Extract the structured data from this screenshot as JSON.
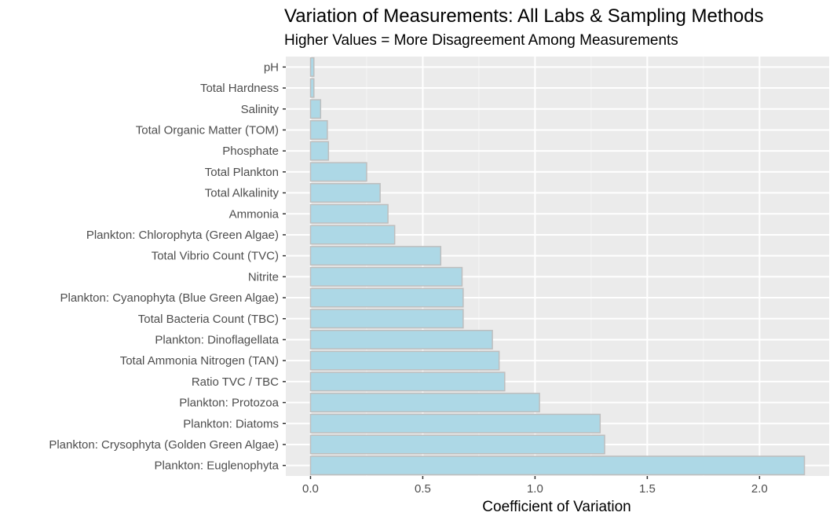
{
  "chart_data": {
    "type": "bar",
    "orientation": "horizontal",
    "title": "Variation of Measurements: All Labs & Sampling Methods",
    "subtitle": "Higher Values = More Disagreement Among Measurements",
    "xlabel": "Coefficient of Variation",
    "ylabel": "",
    "categories": [
      "pH",
      "Total Hardness",
      "Salinity",
      "Total Organic Matter (TOM)",
      "Phosphate",
      "Total Plankton",
      "Total Alkalinity",
      "Ammonia",
      "Plankton: Chlorophyta (Green Algae)",
      "Total Vibrio Count (TVC)",
      "Nitrite",
      "Plankton: Cyanophyta (Blue Green Algae)",
      "Total Bacteria Count (TBC)",
      "Plankton: Dinoflagellata",
      "Total Ammonia Nitrogen (TAN)",
      "Ratio TVC / TBC",
      "Plankton: Protozoa",
      "Plankton: Diatoms",
      "Plankton: Crysophyta (Golden Green Algae)",
      "Plankton: Euglenophyta"
    ],
    "values": [
      0.015,
      0.015,
      0.045,
      0.075,
      0.08,
      0.25,
      0.31,
      0.345,
      0.375,
      0.58,
      0.675,
      0.68,
      0.68,
      0.81,
      0.84,
      0.865,
      1.02,
      1.29,
      1.31,
      2.2
    ],
    "xlim": [
      -0.11,
      2.31
    ],
    "xticks": [
      0.0,
      0.5,
      1.0,
      1.5,
      2.0
    ],
    "xtick_labels": [
      "0.0",
      "0.5",
      "1.0",
      "1.5",
      "2.0"
    ],
    "grid": true,
    "legend": "none",
    "colors": {
      "bar_fill": "#add8e6",
      "bar_stroke": "#bebebe",
      "panel_bg": "#ebebeb",
      "grid_major": "#ffffff",
      "grid_minor": "#f5f5f5"
    }
  }
}
